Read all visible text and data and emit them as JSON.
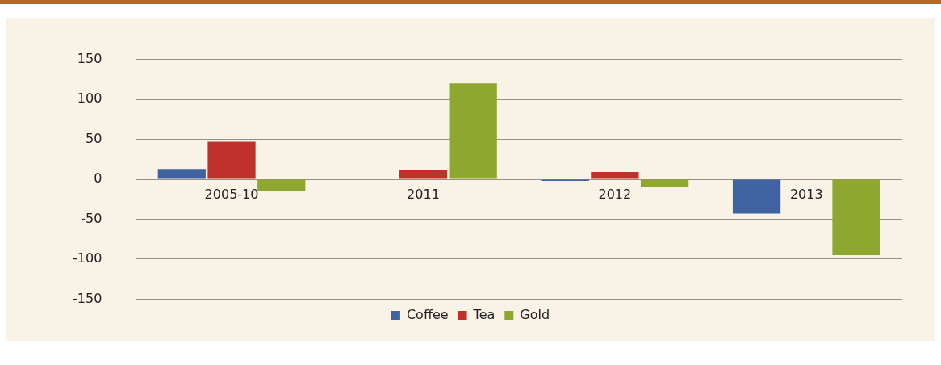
{
  "chart_data": {
    "type": "bar",
    "categories": [
      "2005-10",
      "2011",
      "2012",
      "2013"
    ],
    "series": [
      {
        "name": "Coffee",
        "color": "#3f62a0",
        "values": [
          13,
          0,
          -2,
          -43
        ]
      },
      {
        "name": "Tea",
        "color": "#bf322b",
        "values": [
          47,
          12,
          9,
          0
        ]
      },
      {
        "name": "Gold",
        "color": "#8ea72e",
        "values": [
          -15,
          120,
          -10,
          -95
        ]
      }
    ],
    "ylim": [
      -150,
      150
    ],
    "yticks": [
      -150,
      -100,
      -50,
      0,
      50,
      100,
      150
    ],
    "grid": "y",
    "legend": "bottom"
  }
}
